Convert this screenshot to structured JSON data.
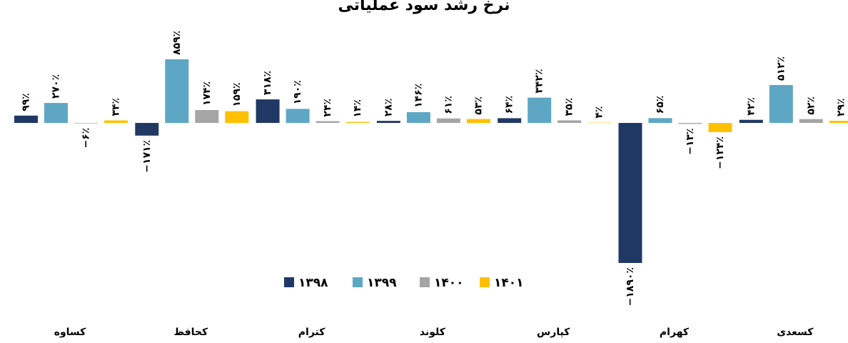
{
  "chart_data": {
    "type": "bar",
    "title": "نرخ رشد سود عملیاتی",
    "categories": [
      "کساوه",
      "کحافظ",
      "کترام",
      "کلوند",
      "کپارس",
      "کهرام",
      "کسعدی"
    ],
    "series": [
      {
        "name": "۱۳۹۸",
        "color": "#203864",
        "values": [
          99,
          -171,
          318,
          28,
          64,
          -1890,
          42
        ],
        "value_labels": [
          "۹۹٪",
          "−۱۷۱٪",
          "۳۱۸٪",
          "۲۸٪",
          "۶۴٪",
          "−۱۸۹۰٪",
          "۴۲٪"
        ]
      },
      {
        "name": "۱۳۹۹",
        "color": "#5ea7c4",
        "values": [
          270,
          859,
          190,
          146,
          342,
          65,
          512
        ],
        "value_labels": [
          "۲۷۰٪",
          "۸۵۹٪",
          "۱۹۰٪",
          "۱۴۶٪",
          "۳۴۲٪",
          "۶۵٪",
          "۵۱۲٪"
        ]
      },
      {
        "name": "۱۴۰۰",
        "color": "#a5a5a5",
        "values": [
          -6,
          174,
          24,
          61,
          35,
          -13,
          52
        ],
        "value_labels": [
          "−۶٪",
          "۱۷۴٪",
          "۲۴٪",
          "۶۱٪",
          "۳۵٪",
          "−۱۳٪",
          "۵۲٪"
        ]
      },
      {
        "name": "۱۴۰۱",
        "color": "#ffc000",
        "values": [
          34,
          159,
          14,
          53,
          4,
          -124,
          29
        ],
        "value_labels": [
          "۳۴٪",
          "۱۵۹٪",
          "۱۴٪",
          "۵۳٪",
          "۴٪",
          "−۱۲۴٪",
          "۲۹٪"
        ]
      }
    ]
  }
}
